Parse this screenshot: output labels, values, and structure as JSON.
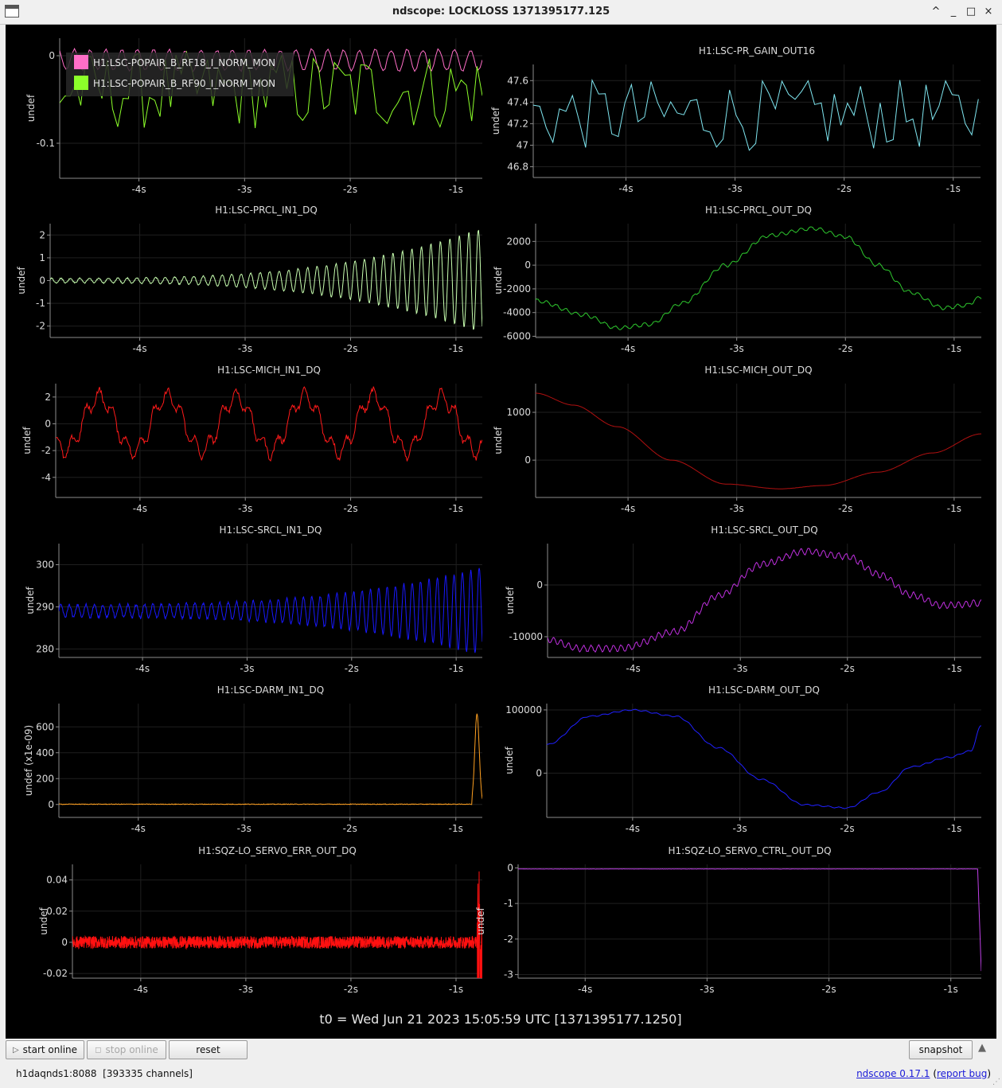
{
  "window": {
    "title": "ndscope: LOCKLOSS 1371395177.125",
    "controls": [
      "^",
      "_",
      "□",
      "×"
    ]
  },
  "t0_label": "t0 = Wed Jun 21 2023 15:05:59 UTC [1371395177.1250]",
  "buttons": {
    "start_online": "start online",
    "stop_online": "stop online",
    "reset": "reset",
    "snapshot": "snapshot"
  },
  "status": {
    "server": "h1daqnds1:8088  [393335 channels]",
    "version_link": "ndscope 0.17.1",
    "report_bug_link": "report bug",
    "paren_open": "(",
    "paren_close": ")"
  },
  "colors": {
    "background": "#000000",
    "grid": "#1f1f1f",
    "axis": "#8c8c8c",
    "text": "#dcdcdc"
  },
  "chart_data": [
    {
      "type": "line",
      "title": "",
      "ylabel": "undef",
      "legend": [
        "H1:LSC-POPAIR_B_RF18_I_NORM_MON",
        "H1:LSC-POPAIR_B_RF90_I_NORM_MON"
      ],
      "legend_placement": "top-left",
      "xlim": [
        -4.75,
        -0.75
      ],
      "ylim": [
        -0.14,
        0.02
      ],
      "yticks": [
        {
          "v": 0,
          "label": "0"
        },
        {
          "v": -0.1,
          "label": "-0.1"
        }
      ],
      "series": [
        {
          "name": "H1:LSC-POPAIR_B_RF18_I_NORM_MON",
          "color": "#ff6ec7",
          "kind": "noise",
          "base": -0.005,
          "amp": 0.012,
          "period": 0.15,
          "noise": 0.003
        },
        {
          "name": "H1:LSC-POPAIR_B_RF90_I_NORM_MON",
          "color": "#8cff2a",
          "kind": "spiky",
          "base": -0.04,
          "amp": 0.045,
          "step": 0.05
        }
      ]
    },
    {
      "type": "line",
      "title": "H1:LSC-PR_GAIN_OUT16",
      "ylabel": "undef",
      "xlim": [
        -4.85,
        -0.75
      ],
      "ylim": [
        46.7,
        47.75
      ],
      "yticks": [
        {
          "v": 47.6,
          "label": "47.6"
        },
        {
          "v": 47.4,
          "label": "47.4"
        },
        {
          "v": 47.2,
          "label": "47.2"
        },
        {
          "v": 47,
          "label": "47"
        },
        {
          "v": 46.8,
          "label": "46.8"
        }
      ],
      "series": [
        {
          "name": "H1:LSC-PR_GAIN_OUT16",
          "color": "#7fe6f0",
          "kind": "zig",
          "base": 47.28,
          "amp": 0.33,
          "step": 0.06
        }
      ]
    },
    {
      "type": "line",
      "title": "H1:LSC-PRCL_IN1_DQ",
      "ylabel": "undef",
      "xlim": [
        -4.85,
        -0.75
      ],
      "ylim": [
        -2.5,
        2.5
      ],
      "yticks": [
        {
          "v": 2,
          "label": "2"
        },
        {
          "v": 1,
          "label": "1"
        },
        {
          "v": 0,
          "label": "0"
        },
        {
          "v": -1,
          "label": "-1"
        },
        {
          "v": -2,
          "label": "-2"
        }
      ],
      "series": [
        {
          "name": "H1:LSC-PRCL_IN1_DQ",
          "color": "#c8ffb0",
          "kind": "growosc",
          "base": 0,
          "amp": 0.1,
          "grow": 2.2,
          "period": 0.09,
          "noise": 0.05
        }
      ]
    },
    {
      "type": "line",
      "title": "H1:LSC-PRCL_OUT_DQ",
      "ylabel": "undef",
      "xlim": [
        -4.85,
        -0.75
      ],
      "ylim": [
        -6100,
        3500
      ],
      "yticks": [
        {
          "v": 2000,
          "label": "2000"
        },
        {
          "v": 0,
          "label": "0"
        },
        {
          "v": -2000,
          "label": "-2000"
        },
        {
          "v": -4000,
          "label": "-4000"
        },
        {
          "v": -6000,
          "label": "-6000"
        }
      ],
      "series": [
        {
          "name": "H1:LSC-PRCL_OUT_DQ",
          "color": "#2ec82e",
          "kind": "interp",
          "pts": [
            [
              -4.85,
              -3000
            ],
            [
              -4.4,
              -4200
            ],
            [
              -4.1,
              -5300
            ],
            [
              -3.8,
              -5000
            ],
            [
              -3.5,
              -3200
            ],
            [
              -3.1,
              0
            ],
            [
              -2.7,
              2500
            ],
            [
              -2.3,
              3100
            ],
            [
              -2.0,
              2400
            ],
            [
              -1.7,
              0
            ],
            [
              -1.4,
              -2300
            ],
            [
              -1.1,
              -3600
            ],
            [
              -0.9,
              -3400
            ],
            [
              -0.75,
              -2700
            ]
          ],
          "ripple": 150,
          "ripple_period": 0.09
        }
      ]
    },
    {
      "type": "line",
      "title": "H1:LSC-MICH_IN1_DQ",
      "ylabel": "undef",
      "xlim": [
        -4.8,
        -0.75
      ],
      "ylim": [
        -5.5,
        3.0
      ],
      "yticks": [
        {
          "v": 2,
          "label": "2"
        },
        {
          "v": 0,
          "label": "0"
        },
        {
          "v": -2,
          "label": "-2"
        },
        {
          "v": -4,
          "label": "-4"
        }
      ],
      "series": [
        {
          "name": "H1:LSC-MICH_IN1_DQ",
          "color": "#ff1a1a",
          "kind": "wavy",
          "base": 0,
          "amp": 2.0,
          "period": 0.65,
          "noise": 0.4
        }
      ]
    },
    {
      "type": "line",
      "title": "H1:LSC-MICH_OUT_DQ",
      "ylabel": "undef",
      "xlim": [
        -4.85,
        -0.75
      ],
      "ylim": [
        -780,
        1600
      ],
      "yticks": [
        {
          "v": 1000,
          "label": "1000"
        },
        {
          "v": 0,
          "label": "0"
        }
      ],
      "series": [
        {
          "name": "H1:LSC-MICH_OUT_DQ",
          "color": "#b01010",
          "kind": "interp",
          "pts": [
            [
              -4.85,
              1400
            ],
            [
              -4.5,
              1150
            ],
            [
              -4.1,
              700
            ],
            [
              -3.6,
              0
            ],
            [
              -3.1,
              -500
            ],
            [
              -2.6,
              -600
            ],
            [
              -2.2,
              -530
            ],
            [
              -1.7,
              -250
            ],
            [
              -1.2,
              150
            ],
            [
              -0.75,
              550
            ]
          ],
          "ripple": 0,
          "ripple_period": 0.1
        }
      ]
    },
    {
      "type": "line",
      "title": "H1:LSC-SRCL_IN1_DQ",
      "ylabel": "undef",
      "xlim": [
        -4.8,
        -0.75
      ],
      "ylim": [
        278,
        305
      ],
      "yticks": [
        {
          "v": 300,
          "label": "300"
        },
        {
          "v": 290,
          "label": "290"
        },
        {
          "v": 280,
          "label": "280"
        }
      ],
      "series": [
        {
          "name": "H1:LSC-SRCL_IN1_DQ",
          "color": "#1818ff",
          "kind": "growosc",
          "base": 289,
          "amp": 1.5,
          "grow": 9,
          "period": 0.08,
          "noise": 0.6
        }
      ]
    },
    {
      "type": "line",
      "title": "H1:LSC-SRCL_OUT_DQ",
      "ylabel": "undef",
      "xlim": [
        -4.8,
        -0.75
      ],
      "ylim": [
        -14000,
        8000
      ],
      "yticks": [
        {
          "v": 0,
          "label": "0"
        },
        {
          "v": -10000,
          "label": "-10000"
        }
      ],
      "series": [
        {
          "name": "H1:LSC-SRCL_OUT_DQ",
          "color": "#c030e0",
          "kind": "interp",
          "pts": [
            [
              -4.8,
              -10500
            ],
            [
              -4.5,
              -12300
            ],
            [
              -4.1,
              -12200
            ],
            [
              -3.6,
              -9000
            ],
            [
              -3.2,
              -2000
            ],
            [
              -2.8,
              4000
            ],
            [
              -2.4,
              6500
            ],
            [
              -2.0,
              5500
            ],
            [
              -1.7,
              2000
            ],
            [
              -1.4,
              -2000
            ],
            [
              -1.1,
              -4000
            ],
            [
              -0.75,
              -3500
            ]
          ],
          "ripple": 600,
          "ripple_period": 0.07
        }
      ]
    },
    {
      "type": "line",
      "title": "H1:LSC-DARM_IN1_DQ",
      "ylabel": "undef (x1e-09)",
      "xlim": [
        -4.75,
        -0.75
      ],
      "ylim": [
        -100,
        780
      ],
      "yticks": [
        {
          "v": 600,
          "label": "600"
        },
        {
          "v": 400,
          "label": "400"
        },
        {
          "v": 200,
          "label": "200"
        },
        {
          "v": 0,
          "label": "0"
        }
      ],
      "series": [
        {
          "name": "H1:LSC-DARM_IN1_DQ",
          "color": "#ffa020",
          "kind": "spikeend",
          "base": 2,
          "noise": 5,
          "spike": 700
        }
      ]
    },
    {
      "type": "line",
      "title": "H1:LSC-DARM_OUT_DQ",
      "ylabel": "undef",
      "xlim": [
        -4.8,
        -0.75
      ],
      "ylim": [
        -70000,
        110000
      ],
      "yticks": [
        {
          "v": 100000,
          "label": "100000"
        },
        {
          "v": 0,
          "label": "0"
        }
      ],
      "series": [
        {
          "name": "H1:LSC-DARM_OUT_DQ",
          "color": "#2020ff",
          "kind": "interp",
          "pts": [
            [
              -4.8,
              45000
            ],
            [
              -4.4,
              90000
            ],
            [
              -4.0,
              100000
            ],
            [
              -3.6,
              90000
            ],
            [
              -3.2,
              40000
            ],
            [
              -2.8,
              -10000
            ],
            [
              -2.4,
              -50000
            ],
            [
              -2.0,
              -55000
            ],
            [
              -1.7,
              -30000
            ],
            [
              -1.4,
              10000
            ],
            [
              -1.05,
              25000
            ],
            [
              -0.85,
              35000
            ],
            [
              -0.75,
              75000
            ]
          ],
          "ripple": 1000,
          "ripple_period": 0.1
        }
      ]
    },
    {
      "type": "line",
      "title": "H1:SQZ-LO_SERVO_ERR_OUT_DQ",
      "ylabel": "undef",
      "xlim": [
        -4.65,
        -0.75
      ],
      "ylim": [
        -0.023,
        0.05
      ],
      "yticks": [
        {
          "v": 0.04,
          "label": "0.04"
        },
        {
          "v": 0.02,
          "label": "0.02"
        },
        {
          "v": 0,
          "label": "0"
        },
        {
          "v": -0.02,
          "label": "-0.02"
        }
      ],
      "series": [
        {
          "name": "H1:SQZ-LO_SERVO_ERR_OUT_DQ",
          "color": "#ff1010",
          "kind": "band",
          "base": 0,
          "noise": 0.004,
          "spike": 0.045
        }
      ]
    },
    {
      "type": "line",
      "title": "H1:SQZ-LO_SERVO_CTRL_OUT_DQ",
      "ylabel": "undef",
      "xlim": [
        -4.55,
        -0.75
      ],
      "ylim": [
        -3.1,
        0.1
      ],
      "yticks": [
        {
          "v": 0,
          "label": "0"
        },
        {
          "v": -1,
          "label": "-1"
        },
        {
          "v": -2,
          "label": "-2"
        },
        {
          "v": -3,
          "label": "-3"
        }
      ],
      "series": [
        {
          "name": "H1:SQZ-LO_SERVO_CTRL_OUT_DQ",
          "color": "#c040e8",
          "kind": "dropend",
          "base": -0.03,
          "noise": 0.008,
          "end": -2.9
        }
      ]
    }
  ],
  "x_axis_ticks": [
    "-4s",
    "-3s",
    "-2s",
    "-1s"
  ]
}
